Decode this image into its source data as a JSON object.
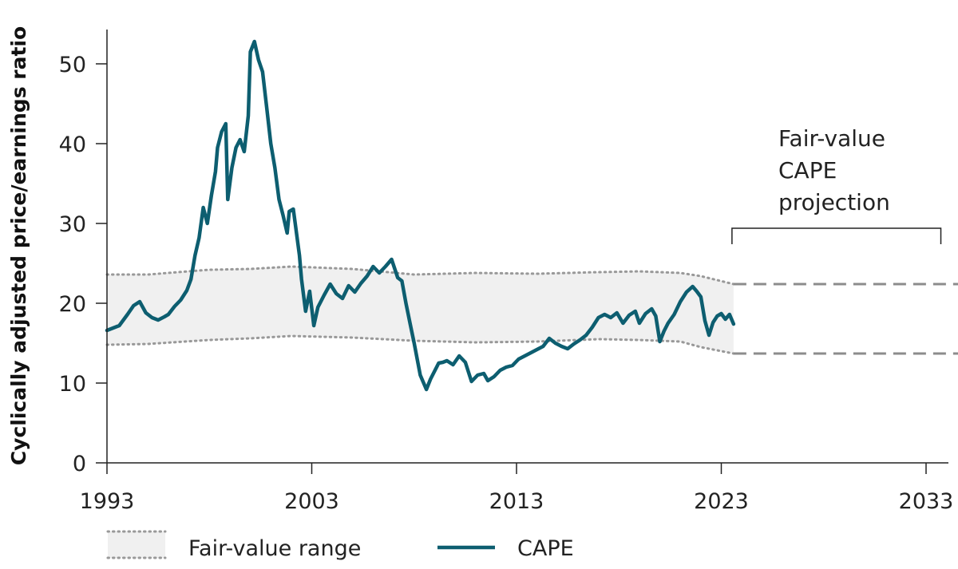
{
  "chart_data": {
    "type": "line",
    "ylabel": "Cyclically adjusted price/earnings ratio",
    "xlabel": "",
    "xlim": [
      1993,
      2034
    ],
    "ylim": [
      0,
      55
    ],
    "x_ticks": [
      "1993",
      "2003",
      "2013",
      "2023",
      "2033"
    ],
    "y_ticks": [
      "0",
      "10",
      "20",
      "30",
      "40",
      "50"
    ],
    "annotation": {
      "lines": [
        "Fair-value",
        "CAPE",
        "projection"
      ],
      "x_start": 2023.6,
      "x_end": 2033.8
    },
    "legend": [
      {
        "name": "Fair-value range",
        "kind": "band"
      },
      {
        "name": "CAPE",
        "kind": "line"
      }
    ],
    "colors": {
      "cape": "#0d5e70",
      "band_fill": "#f0f0f0",
      "band_edge": "#999999",
      "projection": "#8c8c8c",
      "axis": "#222222"
    },
    "fair_value_range": {
      "x": [
        1993,
        1995,
        1998,
        2000,
        2002,
        2005,
        2008,
        2011,
        2014,
        2017,
        2019,
        2021,
        2022,
        2023.6
      ],
      "upper": [
        23.6,
        23.6,
        24.2,
        24.3,
        24.6,
        24.3,
        23.6,
        23.8,
        23.7,
        23.9,
        24.0,
        23.8,
        23.4,
        22.4
      ],
      "lower": [
        14.8,
        14.9,
        15.4,
        15.6,
        15.9,
        15.7,
        15.3,
        15.1,
        15.2,
        15.5,
        15.4,
        15.2,
        14.5,
        13.7
      ]
    },
    "projection": {
      "x": [
        2023.6,
        2034
      ],
      "upper": 22.4,
      "lower": 13.7
    },
    "series": [
      {
        "name": "CAPE",
        "x": [
          1993.0,
          1993.3,
          1993.6,
          1994.0,
          1994.3,
          1994.6,
          1994.9,
          1995.2,
          1995.5,
          1995.8,
          1996.0,
          1996.3,
          1996.6,
          1996.9,
          1997.1,
          1997.3,
          1997.5,
          1997.7,
          1997.9,
          1998.1,
          1998.3,
          1998.4,
          1998.6,
          1998.8,
          1998.9,
          1999.1,
          1999.3,
          1999.5,
          1999.7,
          1999.9,
          2000.0,
          2000.2,
          2000.4,
          2000.6,
          2000.8,
          2001.0,
          2001.2,
          2001.4,
          2001.6,
          2001.8,
          2001.9,
          2002.1,
          2002.4,
          2002.5,
          2002.7,
          2002.9,
          2003.1,
          2003.3,
          2003.6,
          2003.9,
          2004.2,
          2004.5,
          2004.8,
          2005.1,
          2005.4,
          2005.7,
          2006.0,
          2006.3,
          2006.6,
          2006.9,
          2007.2,
          2007.4,
          2007.6,
          2007.8,
          2008.0,
          2008.3,
          2008.6,
          2008.8,
          2009.0,
          2009.2,
          2009.4,
          2009.6,
          2009.9,
          2010.2,
          2010.5,
          2010.8,
          2011.1,
          2011.4,
          2011.6,
          2011.9,
          2012.2,
          2012.5,
          2012.8,
          2013.1,
          2013.4,
          2013.7,
          2014.0,
          2014.3,
          2014.6,
          2014.9,
          2015.2,
          2015.5,
          2015.8,
          2016.1,
          2016.4,
          2016.7,
          2017.0,
          2017.3,
          2017.6,
          2017.9,
          2018.2,
          2018.5,
          2018.8,
          2019.0,
          2019.3,
          2019.6,
          2019.8,
          2020.0,
          2020.2,
          2020.4,
          2020.7,
          2021.0,
          2021.3,
          2021.6,
          2021.8,
          2022.0,
          2022.2,
          2022.4,
          2022.6,
          2022.8,
          2023.0,
          2023.2,
          2023.4,
          2023.6
        ],
        "values": [
          16.6,
          16.9,
          17.2,
          18.6,
          19.7,
          20.2,
          18.8,
          18.2,
          17.9,
          18.3,
          18.6,
          19.6,
          20.4,
          21.6,
          23.0,
          26.0,
          28.2,
          32.0,
          30.0,
          33.5,
          36.5,
          39.5,
          41.5,
          42.5,
          33.0,
          37.0,
          39.5,
          40.5,
          39.0,
          43.5,
          51.5,
          52.8,
          50.5,
          49.0,
          44.5,
          40.0,
          37.0,
          33.0,
          31.0,
          28.8,
          31.5,
          31.8,
          26.0,
          23.0,
          19.0,
          21.5,
          17.2,
          19.5,
          21.0,
          22.4,
          21.2,
          20.6,
          22.2,
          21.4,
          22.5,
          23.4,
          24.6,
          23.8,
          24.6,
          25.5,
          23.2,
          22.8,
          20.0,
          17.5,
          15.0,
          11.0,
          9.2,
          10.5,
          11.5,
          12.5,
          12.6,
          12.8,
          12.3,
          13.4,
          12.6,
          10.2,
          11.0,
          11.2,
          10.3,
          10.8,
          11.6,
          12.0,
          12.2,
          13.0,
          13.4,
          13.8,
          14.2,
          14.6,
          15.6,
          15.0,
          14.6,
          14.3,
          14.9,
          15.4,
          16.0,
          17.0,
          18.2,
          18.6,
          18.2,
          18.8,
          17.5,
          18.5,
          19.0,
          17.5,
          18.7,
          19.3,
          18.4,
          15.2,
          16.5,
          17.5,
          18.6,
          20.2,
          21.4,
          22.1,
          21.5,
          20.8,
          17.8,
          16.0,
          17.6,
          18.4,
          18.7,
          18.0,
          18.6,
          17.4
        ]
      }
    ]
  }
}
